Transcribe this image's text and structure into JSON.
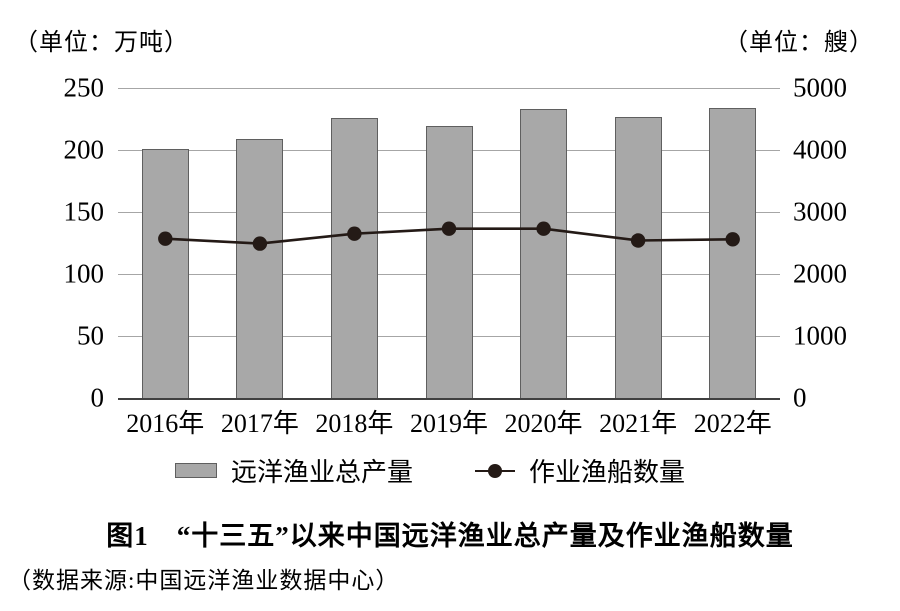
{
  "figure": {
    "unit_left": "（单位：万吨）",
    "unit_right": "（单位：艘）",
    "title": "图1　“十三五”以来中国远洋渔业总产量及作业渔船数量",
    "source": "（数据来源:中国远洋渔业数据中心）"
  },
  "legend": {
    "bar_label": "远洋渔业总产量",
    "line_label": "作业渔船数量"
  },
  "colors": {
    "bar_fill": "#a8a8a8",
    "bar_border": "#5f5f5f",
    "line": "#241a16",
    "gridline": "#a6a6a6",
    "axis_line": "#404040"
  },
  "chart_data": {
    "type": "bar",
    "subtype": "dual-axis bar + line",
    "title": "图1　“十三五”以来中国远洋渔业总产量及作业渔船数量",
    "categories": [
      "2016年",
      "2017年",
      "2018年",
      "2019年",
      "2020年",
      "2021年",
      "2022年"
    ],
    "series": [
      {
        "name": "远洋渔业总产量",
        "type": "bar",
        "axis": "left",
        "unit": "万吨",
        "values": [
          201,
          209,
          226,
          219,
          233,
          227,
          234
        ]
      },
      {
        "name": "作业渔船数量",
        "type": "line",
        "axis": "right",
        "unit": "艘",
        "values": [
          2570,
          2490,
          2650,
          2730,
          2730,
          2540,
          2560
        ]
      }
    ],
    "left_axis": {
      "label": "（单位：万吨）",
      "ticks": [
        250,
        200,
        150,
        100,
        50,
        0
      ],
      "min": 0,
      "max": 250
    },
    "right_axis": {
      "label": "（单位：艘）",
      "ticks": [
        5000,
        4000,
        3000,
        2000,
        1000,
        0
      ],
      "min": 0,
      "max": 5000
    },
    "grid": "horizontal gridlines at every tick",
    "legend_position": "bottom center"
  }
}
